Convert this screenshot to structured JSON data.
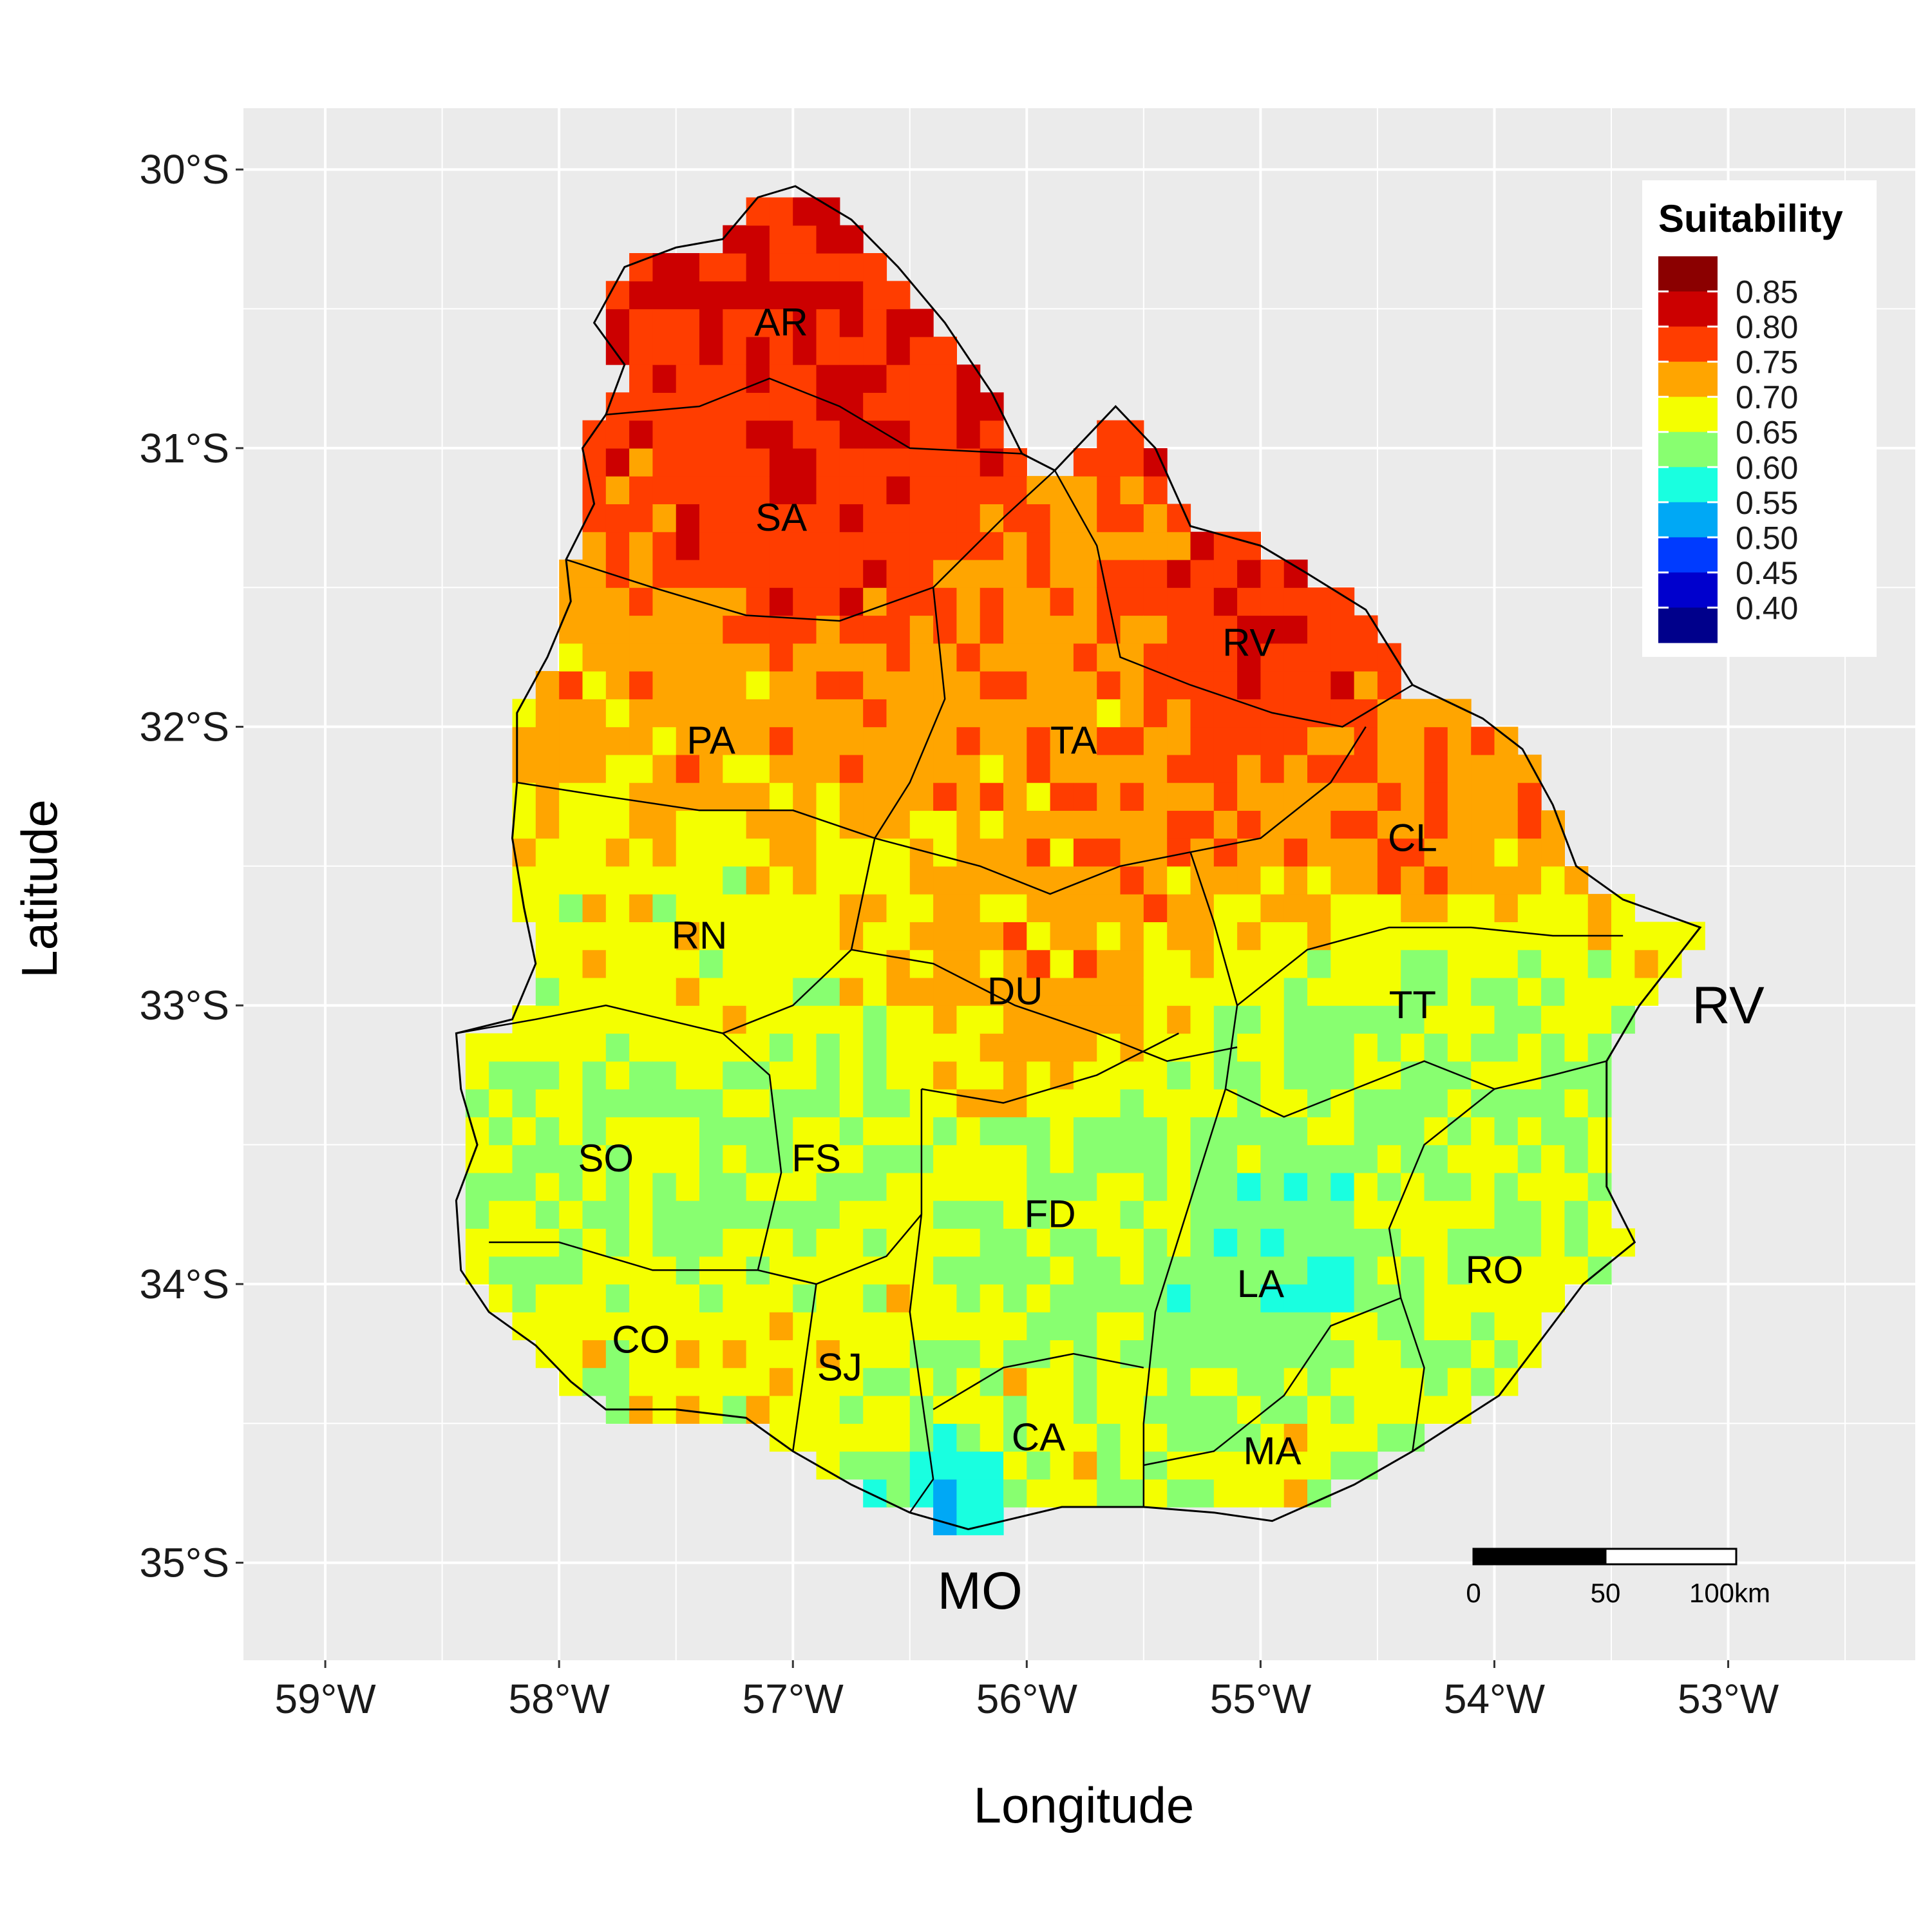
{
  "chart_data": {
    "type": "heatmap",
    "xlabel": "Longitude",
    "ylabel": "Latitude",
    "xlim": [
      -59.35,
      -52.2
    ],
    "ylim": [
      -35.35,
      -29.78
    ],
    "grid": true,
    "x_ticks": [
      {
        "value": -59,
        "label": "59°W"
      },
      {
        "value": -58,
        "label": "58°W"
      },
      {
        "value": -57,
        "label": "57°W"
      },
      {
        "value": -56,
        "label": "56°W"
      },
      {
        "value": -55,
        "label": "55°W"
      },
      {
        "value": -54,
        "label": "54°W"
      },
      {
        "value": -53,
        "label": "53°W"
      }
    ],
    "y_ticks": [
      {
        "value": -30,
        "label": "30°S"
      },
      {
        "value": -31,
        "label": "31°S"
      },
      {
        "value": -32,
        "label": "32°S"
      },
      {
        "value": -33,
        "label": "33°S"
      },
      {
        "value": -34,
        "label": "34°S"
      },
      {
        "value": -35,
        "label": "35°S"
      }
    ],
    "legend": {
      "title": "Suitability",
      "position": "top-right",
      "levels": [
        "0.85",
        "0.80",
        "0.75",
        "0.70",
        "0.65",
        "0.60",
        "0.55",
        "0.50",
        "0.45",
        "0.40"
      ],
      "colors": [
        "#8B0000",
        "#CC0000",
        "#FF3D00",
        "#FFA500",
        "#F4FF00",
        "#88FF70",
        "#19FFE0",
        "#00A8F5",
        "#003BFF",
        "#0000CD",
        "#00008B"
      ]
    },
    "departments": [
      {
        "code": "AR",
        "lon": -57.05,
        "lat": -30.55,
        "value": 0.8
      },
      {
        "code": "SA",
        "lon": -57.05,
        "lat": -31.25,
        "value": 0.79
      },
      {
        "code": "PA",
        "lon": -57.35,
        "lat": -32.05,
        "value": 0.72
      },
      {
        "code": "TA",
        "lon": -55.8,
        "lat": -32.05,
        "value": 0.73
      },
      {
        "code": "RV",
        "lon": -55.05,
        "lat": -31.7,
        "value": 0.79
      },
      {
        "code": "CL",
        "lon": -54.35,
        "lat": -32.4,
        "value": 0.74
      },
      {
        "code": "RN",
        "lon": -57.4,
        "lat": -32.75,
        "value": 0.68
      },
      {
        "code": "DU",
        "lon": -56.05,
        "lat": -32.95,
        "value": 0.72
      },
      {
        "code": "TT",
        "lon": -54.35,
        "lat": -33.0,
        "value": 0.64
      },
      {
        "code": "SO",
        "lon": -57.8,
        "lat": -33.55,
        "value": 0.65
      },
      {
        "code": "FS",
        "lon": -56.9,
        "lat": -33.55,
        "value": 0.64
      },
      {
        "code": "FD",
        "lon": -55.9,
        "lat": -33.75,
        "value": 0.64
      },
      {
        "code": "LA",
        "lon": -55.0,
        "lat": -34.0,
        "value": 0.61
      },
      {
        "code": "RO",
        "lon": -54.0,
        "lat": -33.95,
        "value": 0.65
      },
      {
        "code": "CO",
        "lon": -57.65,
        "lat": -34.2,
        "value": 0.67
      },
      {
        "code": "SJ",
        "lon": -56.8,
        "lat": -34.3,
        "value": 0.68
      },
      {
        "code": "CA",
        "lon": -55.95,
        "lat": -34.55,
        "value": 0.68
      },
      {
        "code": "MA",
        "lon": -54.95,
        "lat": -34.6,
        "value": 0.67
      },
      {
        "code": "MO",
        "lon": -56.2,
        "lat": -34.85,
        "value": 0.55
      }
    ],
    "annotations": [
      {
        "text": "RV",
        "lon": -53.0,
        "lat": -33.0
      },
      {
        "text": "MO",
        "lon": -56.2,
        "lat": -35.1
      }
    ],
    "scale_bar": {
      "labels": [
        "0",
        "50",
        "100km"
      ]
    }
  }
}
